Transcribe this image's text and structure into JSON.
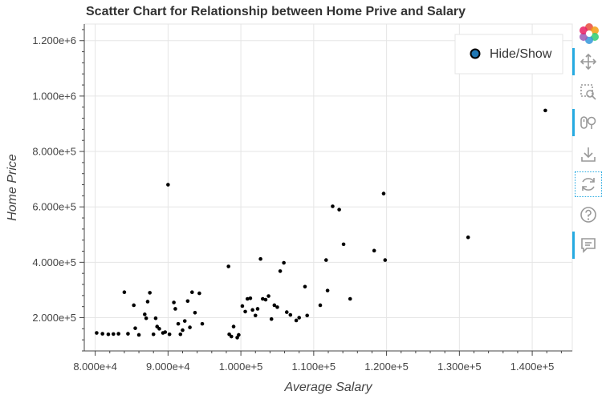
{
  "colors": {
    "point": "#000000",
    "grid": "#e5e5e5",
    "axis": "#444444",
    "toolbar_active": "#26aae1",
    "legend_marker": "#1f77b4"
  },
  "toolbar": {
    "tools": [
      {
        "icon": "bokeh-logo-icon",
        "active": false
      },
      {
        "icon": "pan-icon",
        "active": true
      },
      {
        "icon": "box-zoom-icon",
        "active": false
      },
      {
        "icon": "wheel-zoom-icon",
        "active": true
      },
      {
        "icon": "save-icon",
        "active": false
      },
      {
        "icon": "reset-icon",
        "active": false
      },
      {
        "icon": "help-icon",
        "active": false
      },
      {
        "icon": "hover-icon",
        "active": true
      }
    ]
  },
  "chart_data": {
    "type": "scatter",
    "title": "Scatter Chart for Relationship between Home Prive and Salary",
    "xlabel": "Average Salary",
    "ylabel": "Home Price",
    "xlim": [
      78500,
      145500
    ],
    "ylim": [
      80000,
      1260000
    ],
    "xticks": [
      80000,
      90000,
      100000,
      110000,
      120000,
      130000,
      140000
    ],
    "xtick_labels": [
      "8.000e+4",
      "9.000e+4",
      "1.000e+5",
      "1.100e+5",
      "1.200e+5",
      "1.300e+5",
      "1.400e+5"
    ],
    "yticks": [
      200000,
      400000,
      600000,
      800000,
      1000000,
      1200000
    ],
    "ytick_labels": [
      "2.000e+5",
      "4.000e+5",
      "6.000e+5",
      "8.000e+5",
      "1.000e+6",
      "1.200e+6"
    ],
    "grid": true,
    "legend": {
      "position": "top-right",
      "entries": [
        "Hide/Show"
      ]
    },
    "series": [
      {
        "name": "Hide/Show",
        "points": [
          [
            80200,
            145000
          ],
          [
            81000,
            142000
          ],
          [
            81800,
            140000
          ],
          [
            82500,
            141000
          ],
          [
            83200,
            142000
          ],
          [
            84000,
            292000
          ],
          [
            84500,
            142000
          ],
          [
            85300,
            245000
          ],
          [
            85500,
            162000
          ],
          [
            86000,
            138000
          ],
          [
            86800,
            212000
          ],
          [
            87000,
            198000
          ],
          [
            87200,
            258000
          ],
          [
            87500,
            290000
          ],
          [
            88000,
            140000
          ],
          [
            88300,
            198000
          ],
          [
            88500,
            168000
          ],
          [
            88800,
            160000
          ],
          [
            89300,
            145000
          ],
          [
            89600,
            148000
          ],
          [
            90000,
            680000
          ],
          [
            90200,
            140000
          ],
          [
            90800,
            255000
          ],
          [
            91000,
            232000
          ],
          [
            91400,
            178000
          ],
          [
            91700,
            140000
          ],
          [
            92000,
            155000
          ],
          [
            92300,
            188000
          ],
          [
            92700,
            260000
          ],
          [
            93000,
            165000
          ],
          [
            93300,
            292000
          ],
          [
            93700,
            218000
          ],
          [
            94300,
            288000
          ],
          [
            94700,
            178000
          ],
          [
            98300,
            385000
          ],
          [
            98400,
            140000
          ],
          [
            98700,
            132000
          ],
          [
            99000,
            168000
          ],
          [
            99500,
            128000
          ],
          [
            99700,
            138000
          ],
          [
            100200,
            242000
          ],
          [
            100600,
            222000
          ],
          [
            100900,
            268000
          ],
          [
            101300,
            270000
          ],
          [
            101600,
            228000
          ],
          [
            102000,
            208000
          ],
          [
            102300,
            232000
          ],
          [
            102700,
            412000
          ],
          [
            103000,
            268000
          ],
          [
            103400,
            265000
          ],
          [
            103800,
            278000
          ],
          [
            104200,
            195000
          ],
          [
            104600,
            245000
          ],
          [
            105000,
            238000
          ],
          [
            105400,
            368000
          ],
          [
            105900,
            398000
          ],
          [
            106300,
            220000
          ],
          [
            106800,
            210000
          ],
          [
            107600,
            190000
          ],
          [
            108000,
            200000
          ],
          [
            108800,
            312000
          ],
          [
            109100,
            208000
          ],
          [
            110900,
            245000
          ],
          [
            111700,
            408000
          ],
          [
            111900,
            298000
          ],
          [
            112600,
            602000
          ],
          [
            113500,
            590000
          ],
          [
            114100,
            465000
          ],
          [
            115000,
            268000
          ],
          [
            118300,
            442000
          ],
          [
            119600,
            648000
          ],
          [
            119800,
            408000
          ],
          [
            131200,
            490000
          ],
          [
            141800,
            948000
          ]
        ]
      }
    ]
  }
}
